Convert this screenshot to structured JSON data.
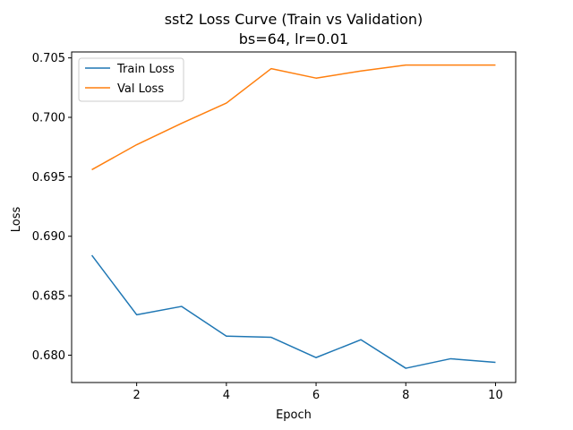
{
  "chart_data": {
    "type": "line",
    "title": "sst2 Loss Curve (Train vs Validation)",
    "subtitle": "bs=64, lr=0.01",
    "xlabel": "Epoch",
    "ylabel": "Loss",
    "x": [
      1,
      2,
      3,
      4,
      5,
      6,
      7,
      8,
      9,
      10
    ],
    "xlim": [
      0.55,
      10.45
    ],
    "ylim": [
      0.6777,
      0.7055
    ],
    "xticks": [
      2,
      4,
      6,
      8,
      10
    ],
    "xtick_labels": [
      "2",
      "4",
      "6",
      "8",
      "10"
    ],
    "yticks": [
      0.68,
      0.685,
      0.69,
      0.695,
      0.7,
      0.705
    ],
    "ytick_labels": [
      "0.680",
      "0.685",
      "0.690",
      "0.695",
      "0.700",
      "0.705"
    ],
    "grid": false,
    "legend_position": "upper-left",
    "series": [
      {
        "name": "Train Loss",
        "color": "#1f77b4",
        "values": [
          0.6884,
          0.6834,
          0.6841,
          0.6816,
          0.6815,
          0.6798,
          0.6813,
          0.6789,
          0.6797,
          0.6794
        ]
      },
      {
        "name": "Val Loss",
        "color": "#ff7f0e",
        "values": [
          0.6956,
          0.6977,
          0.6995,
          0.7012,
          0.7041,
          0.7033,
          0.7039,
          0.7044,
          0.7044,
          0.7044
        ]
      }
    ]
  }
}
